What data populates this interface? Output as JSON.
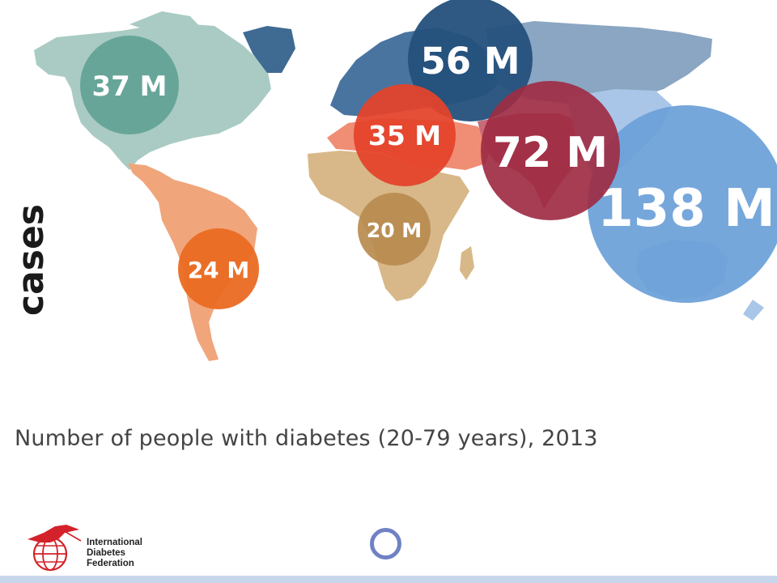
{
  "side_label": "cases",
  "caption": "Number of people with diabetes (20-79 years), 2013",
  "logo": {
    "line1": "International",
    "line2": "Diabetes",
    "line3": "Federation"
  },
  "regions": [
    {
      "id": "north-america",
      "label": "37 M",
      "value_millions": 37,
      "color": "#5f9f93"
    },
    {
      "id": "europe",
      "label": "56 M",
      "value_millions": 56,
      "color": "#24507c"
    },
    {
      "id": "middle-east-north-africa",
      "label": "35 M",
      "value_millions": 35,
      "color": "#e3432b"
    },
    {
      "id": "south-east-asia",
      "label": "72 M",
      "value_millions": 72,
      "color": "#9e2d44"
    },
    {
      "id": "western-pacific",
      "label": "138 M",
      "value_millions": 138,
      "color": "#6a9fd8"
    },
    {
      "id": "africa",
      "label": "20 M",
      "value_millions": 20,
      "color": "#b98b4f"
    },
    {
      "id": "south-central-america",
      "label": "24 M",
      "value_millions": 24,
      "color": "#ea6a22"
    }
  ]
}
